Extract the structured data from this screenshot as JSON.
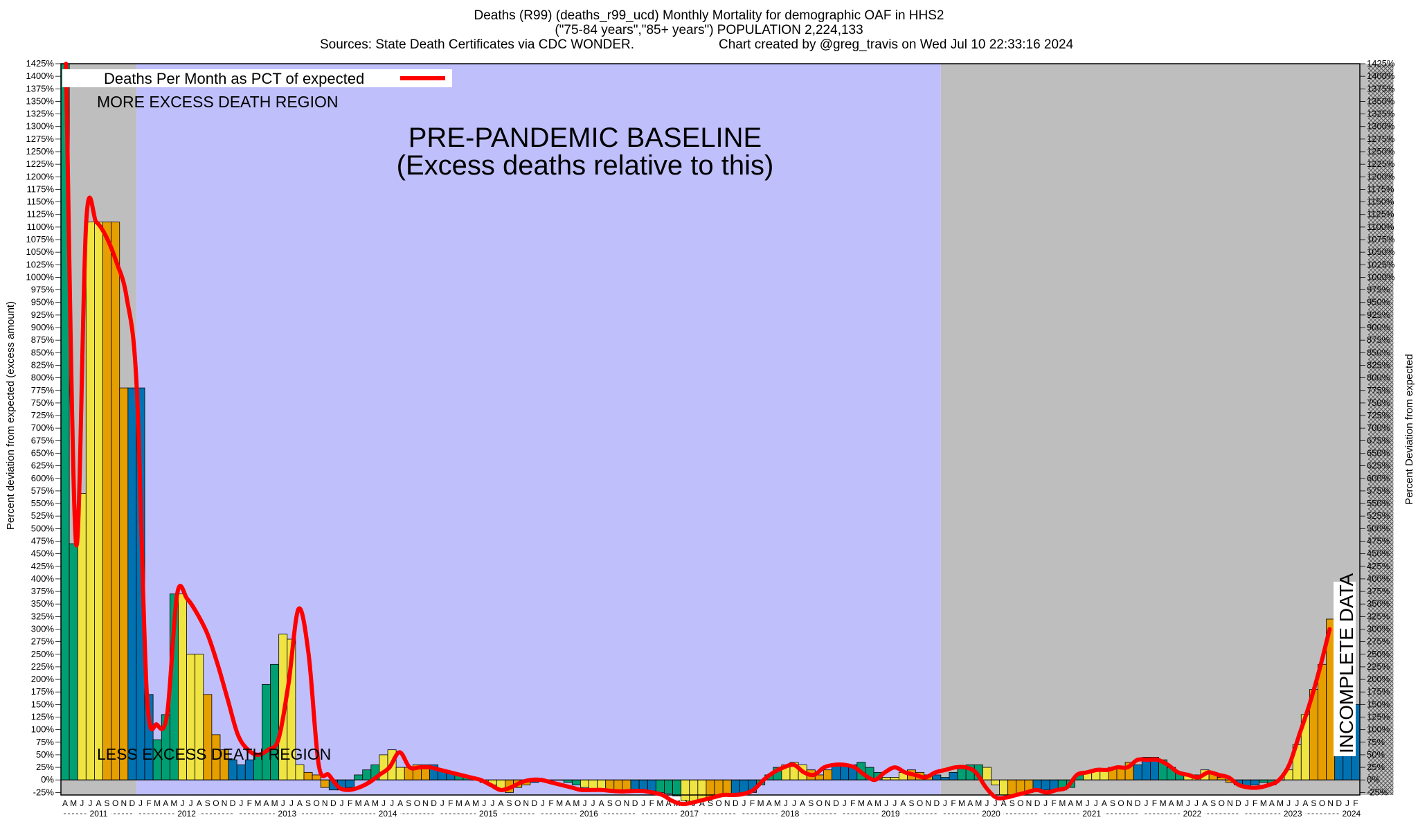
{
  "header": {
    "line1": "Deaths (R99) (deaths_r99_ucd) Monthly Mortality for demographic OAF in HHS2",
    "line2": "(\"75-84 years\",\"85+ years\") POPULATION 2,224,133",
    "line3_left": "Sources: State Death Certificates via CDC WONDER.",
    "line3_right": "Chart created by @greg_travis on Wed Jul 10 22:33:16 2024"
  },
  "chart_data": {
    "type": "bar",
    "title": "Deaths (R99) (deaths_r99_ucd) Monthly Mortality for demographic OAF in HHS2",
    "ylabel_left": "Percent deviation from expected (excess amount)",
    "ylabel_right": "Percent Deviation from expected",
    "ylim": [
      -30,
      1425
    ],
    "legend": {
      "label": "Deaths Per Month as PCT of expected",
      "placement": "top-left",
      "line_color": "#ff0000"
    },
    "annotations": {
      "more_excess": "MORE EXCESS DEATH REGION",
      "less_excess": "LESS EXCESS DEATH REGION",
      "baseline_line1": "PRE-PANDEMIC BASELINE",
      "baseline_line2": "(Excess deaths relative to this)",
      "incomplete": "INCOMPLETE DATA"
    },
    "regions": [
      {
        "name": "more-excess-early",
        "from": "2011-04",
        "to": "2011-12",
        "color": "#bebebe"
      },
      {
        "name": "pre-pandemic-baseline",
        "from": "2012-01",
        "to": "2019-12",
        "color": "#bfbffb"
      },
      {
        "name": "pandemic",
        "from": "2020-01",
        "to": "2024-03",
        "color": "#bebebe"
      },
      {
        "name": "incomplete",
        "from": "2024-04",
        "to": "2024-06",
        "color": "#9a9a9a"
      }
    ],
    "x_start": "2011-04",
    "month_letters": [
      "J",
      "F",
      "M",
      "A",
      "M",
      "J",
      "J",
      "A",
      "S",
      "O",
      "N",
      "D"
    ],
    "years": [
      "2011",
      "2012",
      "2013",
      "2014",
      "2015",
      "2016",
      "2017",
      "2018",
      "2019",
      "2020",
      "2021",
      "2022",
      "2023",
      "2024"
    ],
    "season_colors": {
      "winter": "#0072b2",
      "spring": "#009e73",
      "summer": "#f0e442",
      "fall": "#e69f00"
    },
    "bar_values": [
      1425,
      470,
      570,
      1110,
      1110,
      1110,
      1110,
      780,
      780,
      780,
      170,
      80,
      130,
      370,
      370,
      250,
      250,
      170,
      90,
      60,
      40,
      30,
      40,
      50,
      190,
      230,
      290,
      280,
      30,
      15,
      10,
      -15,
      -20,
      -20,
      -15,
      10,
      20,
      30,
      50,
      60,
      25,
      25,
      30,
      30,
      30,
      20,
      15,
      10,
      5,
      0,
      -5,
      -10,
      -20,
      -25,
      -15,
      -10,
      -5,
      0,
      0,
      0,
      -5,
      -10,
      -15,
      -20,
      -20,
      -20,
      -22,
      -23,
      -22,
      -22,
      -22,
      -25,
      -27,
      -32,
      -42,
      -45,
      -42,
      -35,
      -30,
      -30,
      -30,
      -28,
      -25,
      -10,
      10,
      25,
      30,
      35,
      30,
      20,
      10,
      20,
      30,
      30,
      30,
      35,
      25,
      15,
      5,
      5,
      15,
      20,
      15,
      10,
      10,
      5,
      15,
      25,
      30,
      30,
      25,
      -10,
      -30,
      -30,
      -30,
      -25,
      -20,
      -20,
      -20,
      -20,
      -15,
      10,
      15,
      20,
      20,
      25,
      25,
      35,
      30,
      45,
      45,
      40,
      25,
      15,
      10,
      10,
      20,
      15,
      5,
      -5,
      -10,
      -15,
      -10,
      -5,
      -10,
      0,
      20,
      70,
      130,
      180,
      230,
      320,
      150,
      150,
      150
    ],
    "line_values": [
      1425,
      470,
      1110,
      1110,
      1080,
      1030,
      960,
      780,
      170,
      110,
      130,
      370,
      360,
      330,
      290,
      230,
      160,
      90,
      60,
      50,
      60,
      80,
      190,
      340,
      250,
      30,
      10,
      -15,
      -20,
      -15,
      -5,
      10,
      25,
      55,
      25,
      25,
      25,
      20,
      15,
      10,
      5,
      0,
      -10,
      -20,
      -15,
      -5,
      0,
      0,
      -5,
      -10,
      -15,
      -20,
      -20,
      -20,
      -22,
      -23,
      -22,
      -22,
      -25,
      -30,
      -42,
      -48,
      -45,
      -40,
      -35,
      -30,
      -30,
      -28,
      -20,
      0,
      15,
      25,
      30,
      15,
      10,
      25,
      30,
      30,
      25,
      10,
      0,
      15,
      25,
      15,
      10,
      5,
      15,
      20,
      25,
      25,
      15,
      -15,
      -35,
      -35,
      -30,
      -25,
      -20,
      -25,
      -20,
      -15,
      10,
      15,
      20,
      20,
      25,
      25,
      40,
      40,
      40,
      30,
      15,
      10,
      5,
      15,
      10,
      5,
      -10,
      -15,
      -15,
      -10,
      0,
      30,
      90,
      150,
      220,
      300
    ]
  }
}
